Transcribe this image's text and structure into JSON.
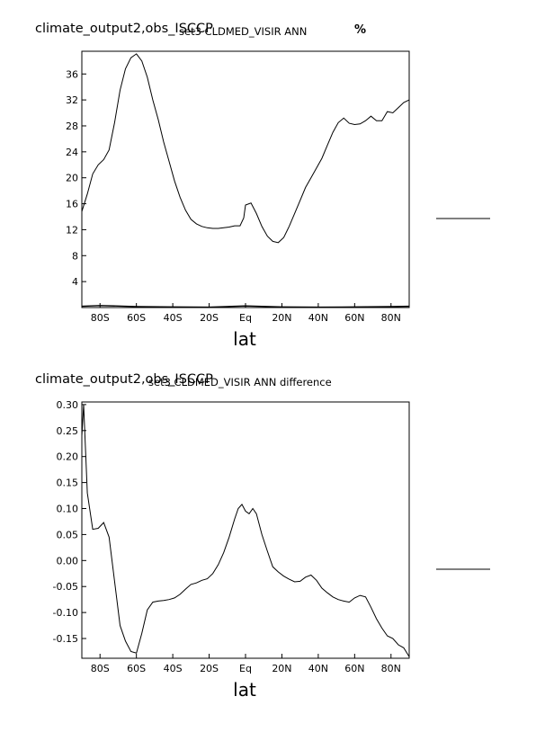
{
  "chart_data": [
    {
      "type": "line",
      "title": "climate_output2,obs_ISCCP",
      "subtitle": "set3 CLDMED_VISIR ANN",
      "units": "%",
      "xlabel": "lat",
      "ylabel": "",
      "xlim": [
        -90,
        90
      ],
      "ylim": [
        0,
        39.5
      ],
      "xticks": [
        -80,
        -60,
        -40,
        -20,
        0,
        20,
        40,
        60,
        80
      ],
      "xtick_labels": [
        "80S",
        "60S",
        "40S",
        "20S",
        "Eq",
        "20N",
        "40N",
        "60N",
        "80N"
      ],
      "yticks": [
        4,
        8,
        12,
        16,
        20,
        24,
        28,
        32,
        36
      ],
      "ytick_labels": [
        "4",
        "8",
        "12",
        "16",
        "20",
        "24",
        "28",
        "32",
        "36"
      ],
      "series": [
        {
          "x": [
            -90,
            -87,
            -84,
            -81,
            -78,
            -75,
            -72,
            -69,
            -66,
            -63,
            -60,
            -57,
            -54,
            -51,
            -48,
            -45,
            -42,
            -39,
            -36,
            -33,
            -30,
            -27,
            -24,
            -21,
            -18,
            -15,
            -12,
            -9,
            -6,
            -3,
            -1,
            0,
            3,
            6,
            9,
            12,
            15,
            18,
            21,
            24,
            27,
            30,
            33,
            36,
            39,
            42,
            45,
            48,
            51,
            54,
            57,
            60,
            63,
            66,
            69,
            72,
            75,
            78,
            81,
            84,
            87,
            90
          ],
          "y": [
            14.8,
            17.5,
            20.6,
            22.0,
            22.8,
            24.3,
            28.5,
            33.5,
            36.8,
            38.5,
            39.1,
            38.0,
            35.5,
            32.0,
            29.0,
            25.5,
            22.5,
            19.5,
            17.0,
            15.0,
            13.6,
            12.9,
            12.5,
            12.3,
            12.2,
            12.2,
            12.3,
            12.4,
            12.6,
            12.6,
            13.8,
            15.8,
            16.1,
            14.5,
            12.5,
            11.0,
            10.2,
            10.0,
            10.8,
            12.5,
            14.5,
            16.5,
            18.5,
            20.0,
            21.5,
            23.0,
            25.0,
            27.0,
            28.5,
            29.2,
            28.4,
            28.2,
            28.3,
            28.8,
            29.5,
            28.8,
            28.8,
            30.2,
            30.0,
            30.8,
            31.6,
            32.0
          ]
        },
        {
          "x": [
            -90,
            -80,
            -60,
            -40,
            -20,
            0,
            20,
            40,
            60,
            80,
            90
          ],
          "y": [
            0.2,
            0.3,
            0.15,
            0.1,
            0.05,
            0.25,
            0.1,
            0.05,
            0.1,
            0.15,
            0.2
          ]
        }
      ]
    },
    {
      "type": "line",
      "title": "climate_output2,obs_ISCCP",
      "subtitle": "set3 CLDMED_VISIR ANN difference",
      "xlabel": "lat",
      "ylabel": "",
      "xlim": [
        -90,
        90
      ],
      "ylim": [
        -0.188,
        0.305
      ],
      "xticks": [
        -80,
        -60,
        -40,
        -20,
        0,
        20,
        40,
        60,
        80
      ],
      "xtick_labels": [
        "80S",
        "60S",
        "40S",
        "20S",
        "Eq",
        "20N",
        "40N",
        "60N",
        "80N"
      ],
      "yticks": [
        -0.15,
        -0.1,
        -0.05,
        0.0,
        0.05,
        0.1,
        0.15,
        0.2,
        0.25,
        0.3
      ],
      "ytick_labels": [
        "-0.15",
        "-0.10",
        "-0.05",
        "0.00",
        "0.05",
        "0.10",
        "0.15",
        "0.20",
        "0.25",
        "0.30"
      ],
      "series": [
        {
          "x": [
            -90,
            -89,
            -87,
            -84,
            -81,
            -78,
            -75,
            -72,
            -69,
            -66,
            -63,
            -60,
            -57,
            -54,
            -51,
            -48,
            -45,
            -42,
            -39,
            -36,
            -33,
            -30,
            -27,
            -24,
            -21,
            -18,
            -15,
            -12,
            -9,
            -6,
            -4,
            -2,
            0,
            2,
            4,
            6,
            9,
            12,
            15,
            18,
            21,
            24,
            27,
            30,
            33,
            36,
            39,
            42,
            45,
            48,
            51,
            54,
            57,
            60,
            63,
            66,
            69,
            72,
            75,
            78,
            81,
            84,
            87,
            90
          ],
          "y": [
            0.24,
            0.3,
            0.13,
            0.06,
            0.062,
            0.073,
            0.045,
            -0.04,
            -0.125,
            -0.155,
            -0.175,
            -0.178,
            -0.14,
            -0.095,
            -0.08,
            -0.078,
            -0.077,
            -0.075,
            -0.072,
            -0.065,
            -0.055,
            -0.046,
            -0.043,
            -0.038,
            -0.035,
            -0.025,
            -0.008,
            0.015,
            0.045,
            0.08,
            0.1,
            0.108,
            0.095,
            0.09,
            0.1,
            0.09,
            0.05,
            0.018,
            -0.012,
            -0.022,
            -0.03,
            -0.036,
            -0.041,
            -0.04,
            -0.032,
            -0.028,
            -0.038,
            -0.053,
            -0.062,
            -0.07,
            -0.075,
            -0.078,
            -0.08,
            -0.072,
            -0.067,
            -0.07,
            -0.09,
            -0.112,
            -0.13,
            -0.145,
            -0.15,
            -0.162,
            -0.168,
            -0.185
          ]
        }
      ]
    }
  ]
}
